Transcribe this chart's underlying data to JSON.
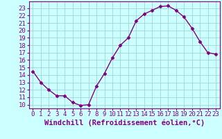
{
  "x": [
    0,
    1,
    2,
    3,
    4,
    5,
    6,
    7,
    8,
    9,
    10,
    11,
    12,
    13,
    14,
    15,
    16,
    17,
    18,
    19,
    20,
    21,
    22,
    23
  ],
  "y": [
    14.5,
    13.0,
    12.0,
    11.2,
    11.2,
    10.3,
    9.9,
    10.0,
    12.5,
    14.2,
    16.3,
    18.0,
    19.0,
    21.3,
    22.2,
    22.7,
    23.2,
    23.3,
    22.7,
    21.8,
    20.3,
    18.5,
    17.0,
    16.8
  ],
  "line_color": "#800080",
  "marker": "D",
  "marker_size": 2.5,
  "bg_color": "#ccffff",
  "grid_color": "#99cccc",
  "xlabel": "Windchill (Refroidissement éolien,°C)",
  "xlabel_color": "#800080",
  "tick_color": "#800080",
  "ylim": [
    9.5,
    23.9
  ],
  "xlim": [
    -0.5,
    23.5
  ],
  "yticks": [
    10,
    11,
    12,
    13,
    14,
    15,
    16,
    17,
    18,
    19,
    20,
    21,
    22,
    23
  ],
  "xticks": [
    0,
    1,
    2,
    3,
    4,
    5,
    6,
    7,
    8,
    9,
    10,
    11,
    12,
    13,
    14,
    15,
    16,
    17,
    18,
    19,
    20,
    21,
    22,
    23
  ],
  "spine_color": "#800080",
  "font_size": 6.5,
  "xlabel_fontsize": 7.5
}
